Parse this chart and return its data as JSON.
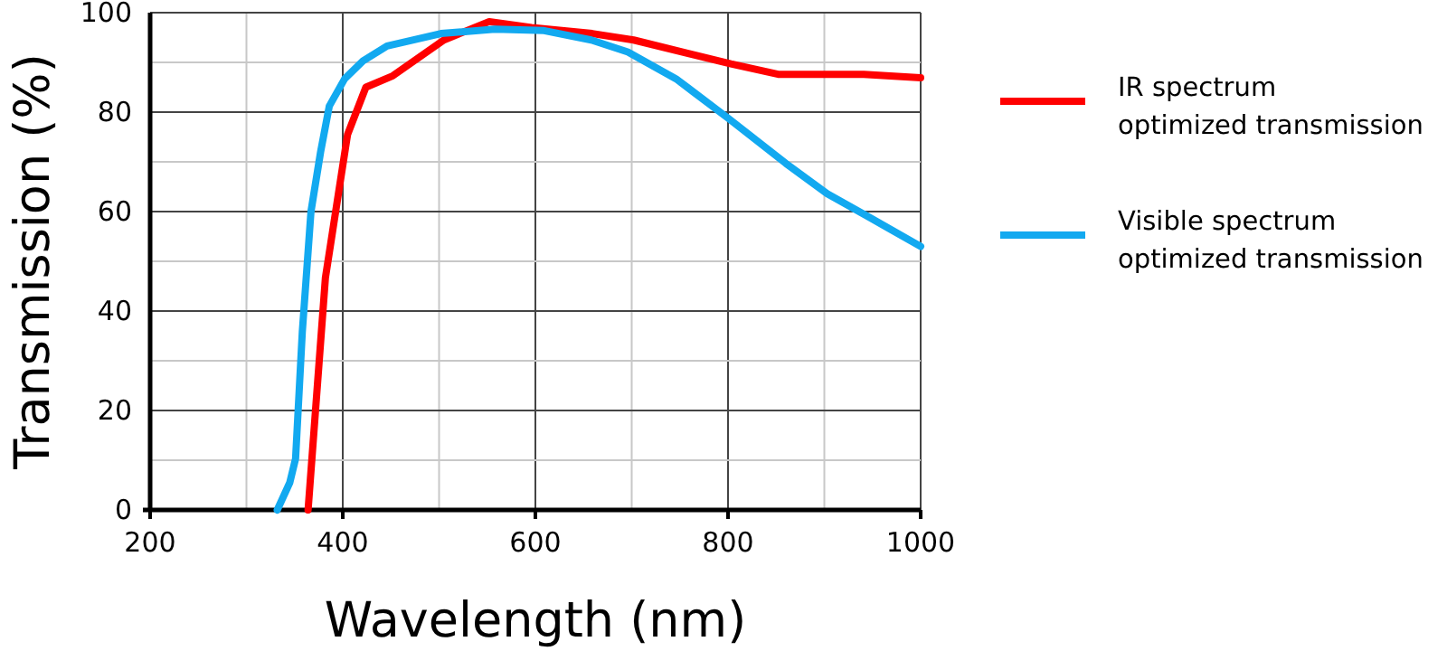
{
  "chart_data": {
    "type": "line",
    "xlabel": "Wavelength (nm)",
    "ylabel": "Transmission (%)",
    "xlim": [
      200,
      1000
    ],
    "xticks": [
      200,
      {
        "value": 300,
        "label": null
      },
      400,
      {
        "value": 500,
        "label": null
      },
      600,
      {
        "value": 700,
        "label": null
      },
      800,
      {
        "value": 900,
        "label": null
      },
      1000
    ],
    "ylim": [
      0,
      100
    ],
    "yticks": [
      0,
      {
        "value": 10,
        "label": null
      },
      20,
      {
        "value": 30,
        "label": null
      },
      40,
      {
        "value": 50,
        "label": null
      },
      60,
      {
        "value": 70,
        "label": null
      },
      80,
      {
        "value": 90,
        "label": null
      },
      100
    ],
    "grid": true,
    "legend": "right",
    "marker": "none",
    "line_style": "solid",
    "series": [
      {
        "name": "IR spectrum optimized transmission",
        "color": "#ff0000",
        "x": [
          364,
          382,
          405,
          424,
          452,
          505,
          552,
          596,
          659,
          702,
          803,
          852,
          941,
          1000
        ],
        "values": [
          0,
          46.7,
          75.5,
          85,
          87.3,
          94.5,
          98.2,
          97,
          95.8,
          94.5,
          89.7,
          87.6,
          87.6,
          86.9
        ]
      },
      {
        "name": "Visible spectrum optimized transmission",
        "color": "#12a9f0",
        "x": [
          332,
          345,
          351,
          358,
          367,
          377,
          386,
          402,
          421,
          446,
          502,
          558,
          609,
          658,
          696,
          746,
          800,
          860,
          903,
          947,
          1000
        ],
        "values": [
          0,
          5.5,
          10.3,
          35.8,
          60,
          72,
          81.2,
          86.7,
          90.3,
          93.3,
          95.8,
          96.7,
          96.4,
          94.5,
          92.1,
          86.7,
          78.8,
          69.7,
          63.6,
          58.8,
          53
        ]
      }
    ]
  }
}
